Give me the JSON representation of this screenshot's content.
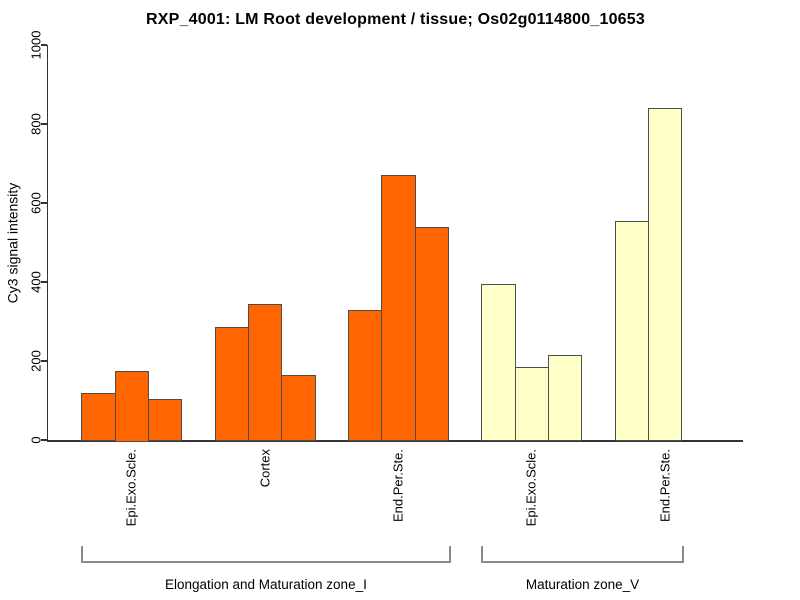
{
  "chart_data": {
    "type": "bar",
    "title": "RXP_4001: LM Root development / tissue; Os02g0114800_10653",
    "ylabel": "Cy3 signal intensity",
    "xlabel": "",
    "ylim": [
      0,
      1000
    ],
    "yticks": [
      0,
      200,
      400,
      600,
      800,
      1000
    ],
    "grid": false,
    "legend": "none",
    "bar_border_color": "#4d4d4d",
    "sections": [
      {
        "label": "Elongation and Maturation zone_I",
        "color": "#FF6600",
        "groups": [
          {
            "label": "Epi.Exo.Scle.",
            "values": [
              120,
              175,
              105
            ]
          },
          {
            "label": "Cortex",
            "values": [
              285,
              345,
              165
            ]
          },
          {
            "label": "End.Per.Ste.",
            "values": [
              330,
              670,
              540
            ]
          }
        ]
      },
      {
        "label": "Maturation zone_V",
        "color": "#FFFFC8",
        "groups": [
          {
            "label": "Epi.Exo.Scle.",
            "values": [
              395,
              185,
              215
            ]
          },
          {
            "label": "End.Per.Ste.",
            "values": [
              555,
              840,
              null
            ]
          }
        ]
      }
    ]
  }
}
